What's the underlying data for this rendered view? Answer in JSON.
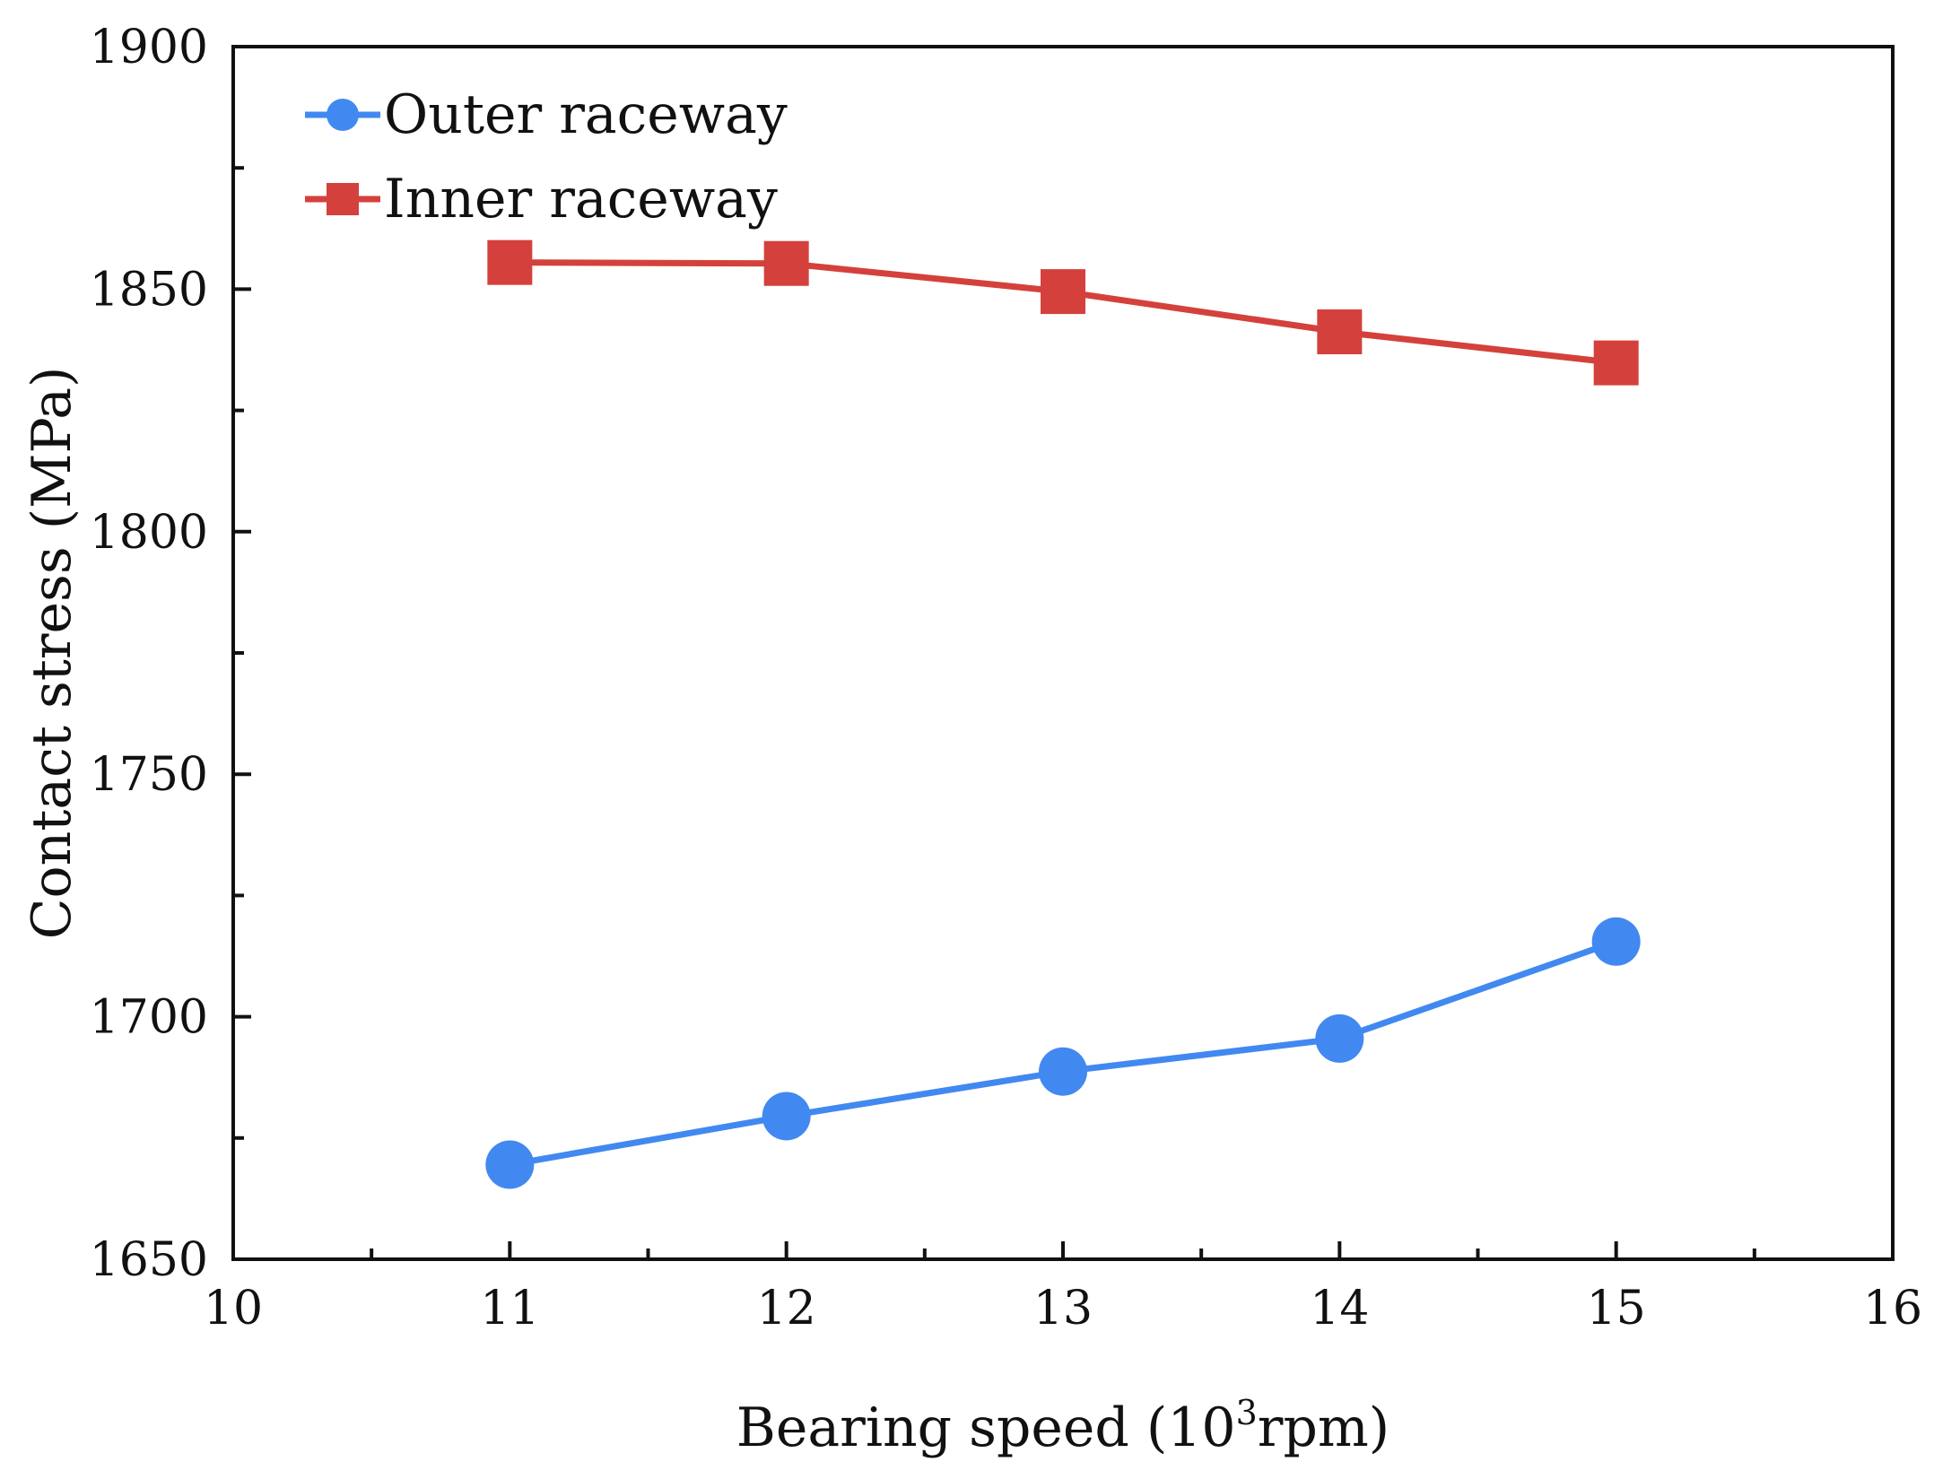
{
  "chart_data": {
    "type": "line",
    "xlabel_prefix": "Bearing speed (10",
    "xlabel_sup": "3",
    "xlabel_suffix": "rpm)",
    "ylabel": "Contact stress (MPa)",
    "xlim": [
      10,
      16
    ],
    "ylim": [
      1650,
      1900
    ],
    "xticks": [
      10,
      11,
      12,
      13,
      14,
      15,
      16
    ],
    "yticks": [
      1650,
      1700,
      1750,
      1800,
      1850,
      1900
    ],
    "x": [
      11,
      12,
      13,
      14,
      15
    ],
    "legend_position": "top-left",
    "grid": false,
    "series": [
      {
        "name": "Outer raceway",
        "marker": "circle",
        "color": "#4189f0",
        "values": [
          1669.5,
          1679.5,
          1688.7,
          1695.5,
          1715.5
        ]
      },
      {
        "name": "Inner raceway",
        "marker": "square",
        "color": "#d4413c",
        "values": [
          1855.5,
          1855.3,
          1849.5,
          1841.2,
          1834.8
        ]
      }
    ]
  }
}
